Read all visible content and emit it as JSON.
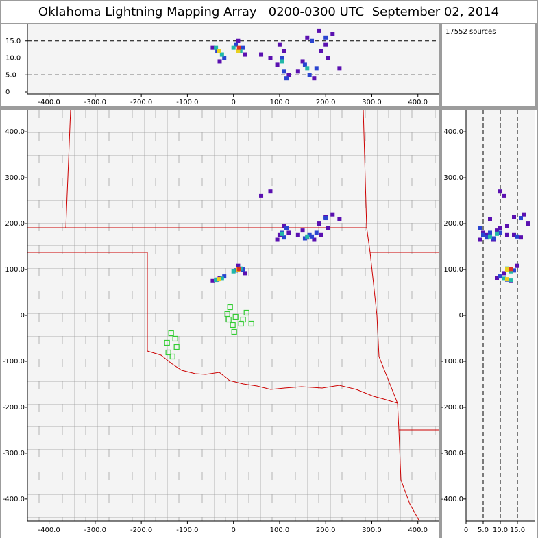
{
  "chart_data": {
    "type": "scatter",
    "title": "Oklahoma Lightning Mapping Array   0200-0300 UTC  September 02, 2014",
    "source_count": "17552 sources",
    "xlim": [
      -447,
      445
    ],
    "ylim": [
      -448,
      448
    ],
    "zlim": [
      0,
      20
    ],
    "xticks": [
      {
        "value": -400,
        "label": "-400.0"
      },
      {
        "value": -300,
        "label": "-300.0"
      },
      {
        "value": -200,
        "label": "-200.0"
      },
      {
        "value": -100,
        "label": "-100.0"
      },
      0,
      {
        "value": 100,
        "label": "100.0"
      },
      {
        "value": 200,
        "label": "200.0"
      },
      {
        "value": 300,
        "label": "300.0"
      },
      {
        "value": 400,
        "label": "400.0"
      }
    ],
    "yticks": [
      {
        "value": -400,
        "label": "-400.0"
      },
      {
        "value": -300,
        "label": "-300.0"
      },
      {
        "value": -200,
        "label": "-200.0"
      },
      {
        "value": -100,
        "label": "-100.0"
      },
      0,
      {
        "value": 100,
        "label": "100.0"
      },
      {
        "value": 200,
        "label": "200.0"
      },
      {
        "value": 300,
        "label": "300.0"
      },
      {
        "value": 400,
        "label": "400.0"
      }
    ],
    "zticks": [
      0,
      {
        "value": 5,
        "label": "5.0"
      },
      {
        "value": 10,
        "label": "10.0"
      },
      {
        "value": 15,
        "label": "15.0"
      }
    ],
    "grid": true,
    "stations": {
      "color": "#33cc33",
      "x": [
        -7.4,
        -13.4,
        4.5,
        28.3,
        -10.4,
        20.8,
        38.7,
        -1.5,
        16.4,
        1.5,
        -135.3,
        -126.4,
        -144.2,
        -123.4,
        -141.3,
        -132.3
      ],
      "y": [
        17.9,
        3.0,
        -3.0,
        6.0,
        -9.0,
        -9.0,
        -17.9,
        -20.9,
        -17.9,
        -35.8,
        -38.8,
        -50.7,
        -59.7,
        -68.7,
        -80.6,
        -89.6
      ]
    },
    "series": [
      {
        "color": "#5a10b0",
        "x": [
          -45,
          -30,
          10,
          25,
          80,
          95,
          110,
          140,
          160,
          185,
          200,
          215,
          230,
          120,
          175,
          205,
          100,
          150,
          190,
          60
        ],
        "y": [
          75,
          82,
          108,
          92,
          270,
          165,
          195,
          175,
          170,
          200,
          215,
          220,
          210,
          180,
          165,
          190,
          175,
          185,
          175,
          260
        ],
        "alt": [
          13,
          9,
          15,
          11,
          10,
          8,
          12,
          6,
          16,
          18,
          14,
          17,
          7,
          5,
          4,
          10,
          14,
          9,
          12,
          11
        ]
      },
      {
        "color": "#2a44d0",
        "x": [
          -35,
          -20,
          5,
          20,
          105,
          110,
          155,
          165,
          180,
          200,
          115,
          170
        ],
        "y": [
          78,
          85,
          98,
          100,
          180,
          170,
          168,
          175,
          180,
          212,
          190,
          172
        ],
        "alt": [
          12,
          10,
          14,
          13,
          10,
          6,
          8,
          5,
          7,
          16,
          4,
          15
        ]
      },
      {
        "color": "#22b8a8",
        "x": [
          -38,
          -25,
          0,
          15,
          105,
          160
        ],
        "y": [
          76,
          80,
          96,
          102,
          178,
          172
        ],
        "alt": [
          13,
          11,
          13,
          12,
          9,
          7
        ]
      },
      {
        "color": "#e8d020",
        "x": [
          -32,
          10
        ],
        "y": [
          79,
          100
        ],
        "alt": [
          12,
          12
        ]
      },
      {
        "color": "#dd3322",
        "x": [
          12
        ],
        "y": [
          101
        ],
        "alt": [
          13
        ]
      }
    ]
  }
}
